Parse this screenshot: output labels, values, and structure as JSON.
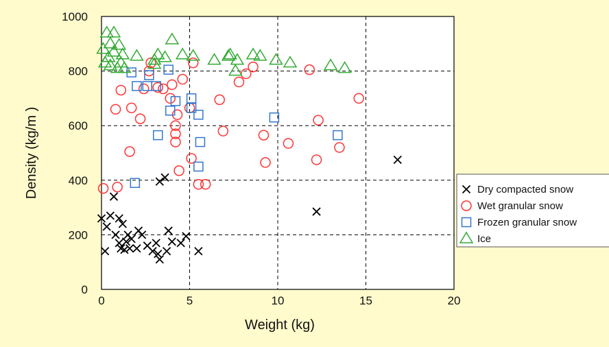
{
  "colors": {
    "background": "#FFFBCC",
    "series": [
      "#000000",
      "#FF3333",
      "#3377CC",
      "#33AA33"
    ]
  },
  "chart_data": {
    "type": "scatter",
    "title": "",
    "xlabel": "Weight (kg)",
    "ylabel": "Density (kg/m )",
    "xlim": [
      0,
      20
    ],
    "ylim": [
      0,
      1000
    ],
    "xticks": [
      "0",
      "5",
      "10",
      "15",
      "20"
    ],
    "yticks": [
      "0",
      "200",
      "400",
      "600",
      "800",
      "1000"
    ],
    "grid": "dashed",
    "legend_position": "right",
    "series": [
      {
        "name": "Dry compacted snow",
        "marker": "x",
        "color": "#000000",
        "points": [
          [
            0,
            260
          ],
          [
            0.2,
            140
          ],
          [
            0.3,
            230
          ],
          [
            0.5,
            270
          ],
          [
            0.7,
            340
          ],
          [
            0.8,
            200
          ],
          [
            1.0,
            260
          ],
          [
            1.0,
            170
          ],
          [
            1.1,
            150
          ],
          [
            1.2,
            240
          ],
          [
            1.3,
            145
          ],
          [
            1.4,
            175
          ],
          [
            1.5,
            200
          ],
          [
            1.6,
            150
          ],
          [
            1.7,
            185
          ],
          [
            2.0,
            150
          ],
          [
            2.1,
            215
          ],
          [
            2.3,
            200
          ],
          [
            2.6,
            160
          ],
          [
            2.9,
            140
          ],
          [
            3.1,
            170
          ],
          [
            3.2,
            130
          ],
          [
            3.3,
            110
          ],
          [
            3.3,
            395
          ],
          [
            3.6,
            410
          ],
          [
            3.7,
            140
          ],
          [
            3.8,
            215
          ],
          [
            4.0,
            175
          ],
          [
            4.5,
            170
          ],
          [
            4.8,
            195
          ],
          [
            5.5,
            140
          ],
          [
            12.2,
            285
          ],
          [
            16.8,
            475
          ]
        ]
      },
      {
        "name": "Wet granular snow",
        "marker": "circle",
        "color": "#FF3333",
        "points": [
          [
            0.1,
            370
          ],
          [
            0.9,
            375
          ],
          [
            0.8,
            660
          ],
          [
            1.1,
            730
          ],
          [
            1.6,
            505
          ],
          [
            1.7,
            665
          ],
          [
            2.2,
            625
          ],
          [
            2.4,
            735
          ],
          [
            2.7,
            800
          ],
          [
            2.8,
            830
          ],
          [
            3.2,
            740
          ],
          [
            3.5,
            735
          ],
          [
            3.9,
            700
          ],
          [
            4.0,
            750
          ],
          [
            4.2,
            600
          ],
          [
            4.2,
            570
          ],
          [
            4.2,
            540
          ],
          [
            4.3,
            640
          ],
          [
            4.4,
            435
          ],
          [
            4.6,
            770
          ],
          [
            5.0,
            665
          ],
          [
            5.1,
            480
          ],
          [
            5.2,
            830
          ],
          [
            5.5,
            385
          ],
          [
            5.9,
            385
          ],
          [
            6.7,
            695
          ],
          [
            6.9,
            580
          ],
          [
            7.8,
            760
          ],
          [
            8.2,
            790
          ],
          [
            8.6,
            815
          ],
          [
            9.2,
            565
          ],
          [
            9.3,
            465
          ],
          [
            10.6,
            535
          ],
          [
            11.8,
            805
          ],
          [
            12.2,
            475
          ],
          [
            12.3,
            620
          ],
          [
            13.5,
            520
          ],
          [
            14.6,
            700
          ]
        ]
      },
      {
        "name": "Frozen granular snow",
        "marker": "square",
        "color": "#3377CC",
        "points": [
          [
            1.7,
            795
          ],
          [
            1.9,
            390
          ],
          [
            2.0,
            745
          ],
          [
            2.6,
            745
          ],
          [
            2.7,
            785
          ],
          [
            3.1,
            745
          ],
          [
            3.2,
            565
          ],
          [
            3.8,
            805
          ],
          [
            3.9,
            655
          ],
          [
            4.2,
            690
          ],
          [
            5.1,
            700
          ],
          [
            5.1,
            665
          ],
          [
            5.5,
            640
          ],
          [
            5.5,
            450
          ],
          [
            5.6,
            540
          ],
          [
            9.8,
            630
          ],
          [
            13.4,
            565
          ]
        ]
      },
      {
        "name": "Ice",
        "marker": "triangle",
        "color": "#33AA33",
        "points": [
          [
            0.1,
            880
          ],
          [
            0.2,
            830
          ],
          [
            0.3,
            940
          ],
          [
            0.4,
            850
          ],
          [
            0.5,
            900
          ],
          [
            0.5,
            820
          ],
          [
            0.7,
            940
          ],
          [
            0.7,
            870
          ],
          [
            0.9,
            810
          ],
          [
            1.0,
            895
          ],
          [
            1.1,
            830
          ],
          [
            1.2,
            860
          ],
          [
            1.3,
            810
          ],
          [
            2.0,
            855
          ],
          [
            3.0,
            825
          ],
          [
            3.0,
            840
          ],
          [
            3.2,
            860
          ],
          [
            3.6,
            850
          ],
          [
            4.0,
            915
          ],
          [
            4.6,
            860
          ],
          [
            5.2,
            855
          ],
          [
            6.4,
            840
          ],
          [
            7.2,
            855
          ],
          [
            7.3,
            860
          ],
          [
            7.6,
            800
          ],
          [
            7.7,
            840
          ],
          [
            8.6,
            860
          ],
          [
            9.0,
            855
          ],
          [
            9.9,
            840
          ],
          [
            10.7,
            830
          ],
          [
            13.0,
            820
          ],
          [
            13.8,
            810
          ]
        ]
      }
    ]
  }
}
